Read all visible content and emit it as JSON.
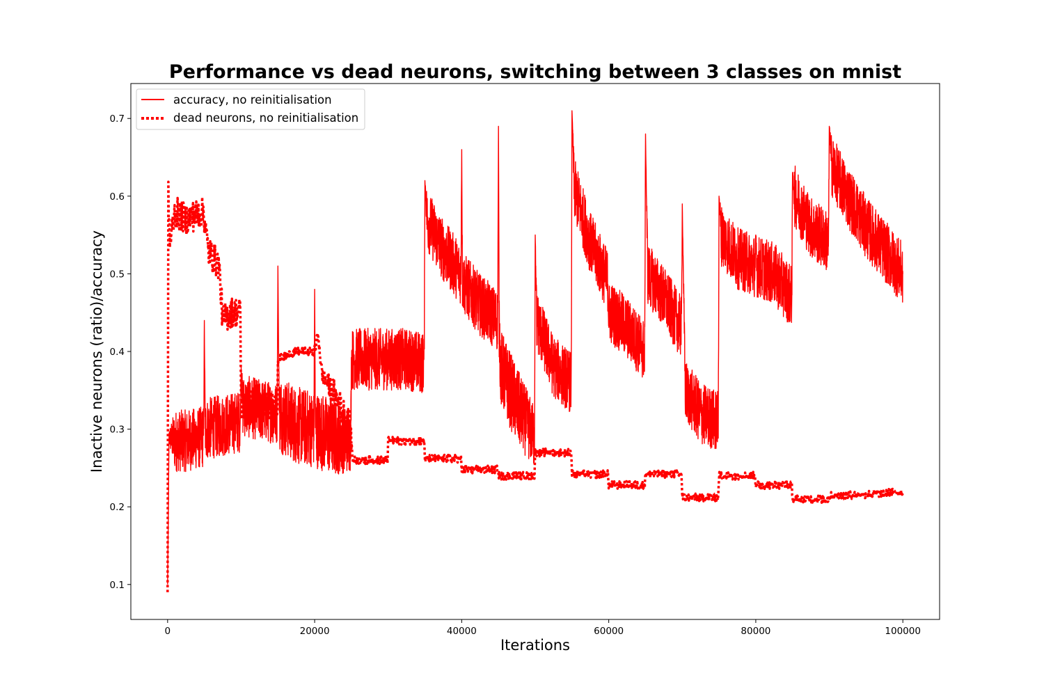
{
  "chart_data": {
    "type": "line",
    "title": "Performance vs dead neurons, switching between 3 classes on mnist",
    "xlabel": "Iterations",
    "ylabel": "Inactive neurons (ratio)/accuracy",
    "xlim": [
      -5000,
      105000
    ],
    "ylim": [
      0.055,
      0.745
    ],
    "xticks": [
      0,
      20000,
      40000,
      60000,
      80000,
      100000
    ],
    "xtick_labels": [
      "0",
      "20000",
      "40000",
      "60000",
      "80000",
      "100000"
    ],
    "yticks": [
      0.1,
      0.2,
      0.3,
      0.4,
      0.5,
      0.6,
      0.7
    ],
    "ytick_labels": [
      "0.1",
      "0.2",
      "0.3",
      "0.4",
      "0.5",
      "0.6",
      "0.7"
    ],
    "grid": false,
    "legend_position": "top-left",
    "color": "#ff0000",
    "series": [
      {
        "name": "accuracy, no reinitialisation",
        "style": "solid",
        "x": [
          0,
          200,
          1000,
          2500,
          4900,
          5000,
          5100,
          7500,
          9900,
          10000,
          10200,
          12500,
          14900,
          15000,
          15100,
          15200,
          17500,
          19900,
          20000,
          20100,
          22500,
          24900,
          25000,
          27500,
          30000,
          32500,
          34900,
          35000,
          35300,
          37500,
          39900,
          40000,
          40100,
          42500,
          44900,
          45000,
          45100,
          45300,
          47500,
          49900,
          50000,
          50200,
          52500,
          54900,
          55000,
          55300,
          57500,
          59900,
          60000,
          60300,
          62500,
          64900,
          65000,
          65300,
          67500,
          69900,
          70000,
          70400,
          72500,
          74900,
          75000,
          75300,
          77500,
          79900,
          80000,
          80100,
          82500,
          84900,
          85000,
          85300,
          87500,
          89900,
          90000,
          90300,
          92500,
          95000,
          97500,
          100000
        ],
        "y": [
          0.1,
          0.29,
          0.285,
          0.285,
          0.29,
          0.44,
          0.3,
          0.305,
          0.31,
          0.38,
          0.33,
          0.325,
          0.32,
          0.51,
          0.4,
          0.32,
          0.305,
          0.3,
          0.48,
          0.3,
          0.29,
          0.285,
          0.39,
          0.39,
          0.39,
          0.39,
          0.385,
          0.62,
          0.57,
          0.53,
          0.5,
          0.66,
          0.49,
          0.46,
          0.44,
          0.69,
          0.43,
          0.38,
          0.33,
          0.29,
          0.55,
          0.44,
          0.38,
          0.36,
          0.71,
          0.61,
          0.54,
          0.49,
          0.45,
          0.45,
          0.43,
          0.4,
          0.68,
          0.5,
          0.47,
          0.43,
          0.59,
          0.35,
          0.32,
          0.31,
          0.6,
          0.55,
          0.52,
          0.51,
          0.55,
          0.51,
          0.5,
          0.47,
          0.63,
          0.6,
          0.56,
          0.54,
          0.69,
          0.64,
          0.6,
          0.56,
          0.53,
          0.5
        ],
        "noise": [
          0,
          0.01,
          0.04,
          0.04,
          0.04,
          0,
          0.04,
          0.04,
          0.04,
          0,
          0.04,
          0.04,
          0.04,
          0,
          0,
          0.05,
          0.05,
          0.05,
          0,
          0.05,
          0.05,
          0.04,
          0.04,
          0.04,
          0.04,
          0.04,
          0.04,
          0,
          0.04,
          0.04,
          0.04,
          0,
          0.04,
          0.04,
          0.04,
          0,
          0.04,
          0.05,
          0.05,
          0.04,
          0,
          0.04,
          0.04,
          0.04,
          0,
          0.04,
          0.04,
          0.04,
          0.04,
          0.04,
          0.04,
          0.04,
          0,
          0.04,
          0.04,
          0.04,
          0,
          0.04,
          0.04,
          0.04,
          0,
          0.04,
          0.04,
          0.04,
          0,
          0.04,
          0.04,
          0.04,
          0,
          0.04,
          0.04,
          0.04,
          0,
          0.04,
          0.04,
          0.04,
          0.04,
          0.04
        ]
      },
      {
        "name": "dead neurons, no reinitialisation",
        "style": "dotted",
        "x": [
          0,
          100,
          300,
          1000,
          2500,
          4900,
          5500,
          7000,
          7500,
          8500,
          9900,
          10000,
          12000,
          14900,
          15000,
          17500,
          19900,
          20500,
          21000,
          23000,
          24900,
          25000,
          25200,
          27500,
          29900,
          30000,
          32500,
          34900,
          35000,
          37500,
          39900,
          40000,
          42500,
          44900,
          45000,
          47500,
          49900,
          50000,
          52500,
          54900,
          55000,
          57500,
          59900,
          60000,
          62500,
          64900,
          65000,
          67500,
          69900,
          70000,
          72500,
          74900,
          75000,
          77500,
          79900,
          80000,
          82500,
          84900,
          85000,
          87500,
          89900,
          90000,
          92500,
          95000,
          97500,
          100000
        ],
        "y": [
          0.09,
          0.6,
          0.54,
          0.58,
          0.57,
          0.58,
          0.53,
          0.51,
          0.44,
          0.45,
          0.45,
          0.33,
          0.33,
          0.33,
          0.39,
          0.4,
          0.4,
          0.42,
          0.37,
          0.34,
          0.3,
          0.28,
          0.26,
          0.26,
          0.26,
          0.285,
          0.285,
          0.285,
          0.262,
          0.262,
          0.262,
          0.248,
          0.248,
          0.248,
          0.24,
          0.24,
          0.24,
          0.27,
          0.27,
          0.27,
          0.242,
          0.242,
          0.242,
          0.228,
          0.228,
          0.228,
          0.242,
          0.242,
          0.242,
          0.212,
          0.212,
          0.212,
          0.24,
          0.24,
          0.24,
          0.228,
          0.228,
          0.228,
          0.21,
          0.21,
          0.21,
          0.214,
          0.215,
          0.216,
          0.218,
          0.219
        ],
        "noise": [
          0,
          0.02,
          0.02,
          0.02,
          0.02,
          0.02,
          0.02,
          0.02,
          0.02,
          0.02,
          0.02,
          0.02,
          0.02,
          0.02,
          0.005,
          0.005,
          0.005,
          0.01,
          0.01,
          0.02,
          0.02,
          0.01,
          0.005,
          0.005,
          0.005,
          0.005,
          0.005,
          0.005,
          0.005,
          0.005,
          0.005,
          0.005,
          0.005,
          0.005,
          0.005,
          0.005,
          0.005,
          0.005,
          0.005,
          0.005,
          0.005,
          0.005,
          0.005,
          0.005,
          0.005,
          0.005,
          0.005,
          0.005,
          0.005,
          0.005,
          0.005,
          0.005,
          0.005,
          0.005,
          0.005,
          0.005,
          0.005,
          0.005,
          0.005,
          0.005,
          0.005,
          0.005,
          0.005,
          0.005,
          0.005,
          0.005
        ]
      }
    ]
  }
}
